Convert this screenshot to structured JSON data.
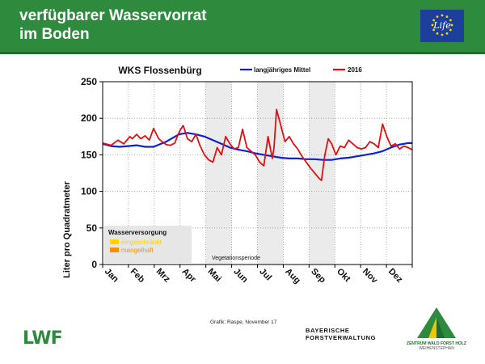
{
  "slide": {
    "title_line1": "verfügbarer Wasservorrat",
    "title_line2": "im Boden",
    "credit": "Grafik: Raspe, November 17",
    "org1_line1": "BAYERISCHE",
    "org1_line2": "FORSTVERWALTUNG",
    "org2_line1": "ZENTRUM WALD FORST HOLZ",
    "org2_line2": "WEIHENSTEPHAN",
    "logo_left": "LWF",
    "logo_eu": "Life",
    "colors": {
      "header": "#2e8b3d",
      "eu_blue": "#1b3f9a",
      "eu_star": "#ffd200"
    }
  },
  "chart_data": {
    "type": "line",
    "title": "WKS Flossenbürg",
    "xlabel": "",
    "ylabel": "Liter pro Quadratmeter",
    "ylim": [
      0,
      250
    ],
    "yticks": [
      0,
      50,
      100,
      150,
      200,
      250
    ],
    "xlim": [
      0,
      365
    ],
    "months": [
      "Jan",
      "Feb",
      "Mrz",
      "Apr",
      "Mai",
      "Jun",
      "Jul",
      "Aug",
      "Sep",
      "Okt",
      "Nov",
      "Dez"
    ],
    "vegetation_label": "Vegetationsperiode",
    "legend_water_title": "Wasserversorgung",
    "legend_water_items": [
      {
        "label": "eingeschränkt",
        "color": "#ffd200"
      },
      {
        "label": "mangelhaft",
        "color": "#f39200"
      }
    ],
    "grid": true,
    "legend": "top-right",
    "series": [
      {
        "name": "langjähriges Mittel",
        "color": "#1020d0",
        "x": [
          0,
          10,
          20,
          30,
          40,
          50,
          60,
          75,
          90,
          100,
          110,
          120,
          130,
          140,
          150,
          160,
          170,
          180,
          190,
          200,
          210,
          220,
          230,
          240,
          250,
          260,
          270,
          280,
          290,
          300,
          310,
          320,
          330,
          340,
          350,
          360,
          365
        ],
        "y": [
          165,
          162,
          161,
          162,
          163,
          161,
          161,
          168,
          178,
          180,
          178,
          175,
          170,
          165,
          160,
          157,
          155,
          152,
          150,
          148,
          146,
          145,
          145,
          144,
          144,
          143,
          143,
          145,
          146,
          148,
          150,
          152,
          155,
          160,
          164,
          166,
          166
        ]
      },
      {
        "name": "2016",
        "color": "#e01010",
        "x": [
          0,
          10,
          18,
          25,
          32,
          35,
          40,
          45,
          50,
          55,
          60,
          66,
          70,
          75,
          80,
          85,
          88,
          92,
          95,
          100,
          105,
          110,
          115,
          120,
          125,
          130,
          135,
          140,
          145,
          150,
          155,
          160,
          165,
          170,
          175,
          180,
          185,
          190,
          195,
          200,
          202,
          205,
          210,
          215,
          220,
          225,
          230,
          235,
          240,
          245,
          250,
          255,
          258,
          262,
          266,
          270,
          275,
          280,
          285,
          290,
          295,
          300,
          305,
          310,
          315,
          320,
          325,
          330,
          335,
          340,
          345,
          350,
          355,
          360,
          365
        ],
        "y": [
          166,
          163,
          170,
          165,
          175,
          172,
          178,
          172,
          176,
          170,
          186,
          172,
          168,
          164,
          163,
          166,
          175,
          185,
          190,
          172,
          168,
          178,
          162,
          150,
          143,
          140,
          160,
          150,
          175,
          165,
          158,
          160,
          185,
          160,
          155,
          150,
          140,
          135,
          175,
          145,
          160,
          212,
          190,
          168,
          175,
          165,
          158,
          148,
          140,
          132,
          125,
          118,
          115,
          150,
          172,
          165,
          150,
          162,
          160,
          170,
          165,
          160,
          158,
          160,
          168,
          165,
          160,
          192,
          175,
          162,
          165,
          158,
          162,
          160,
          157
        ]
      }
    ]
  }
}
